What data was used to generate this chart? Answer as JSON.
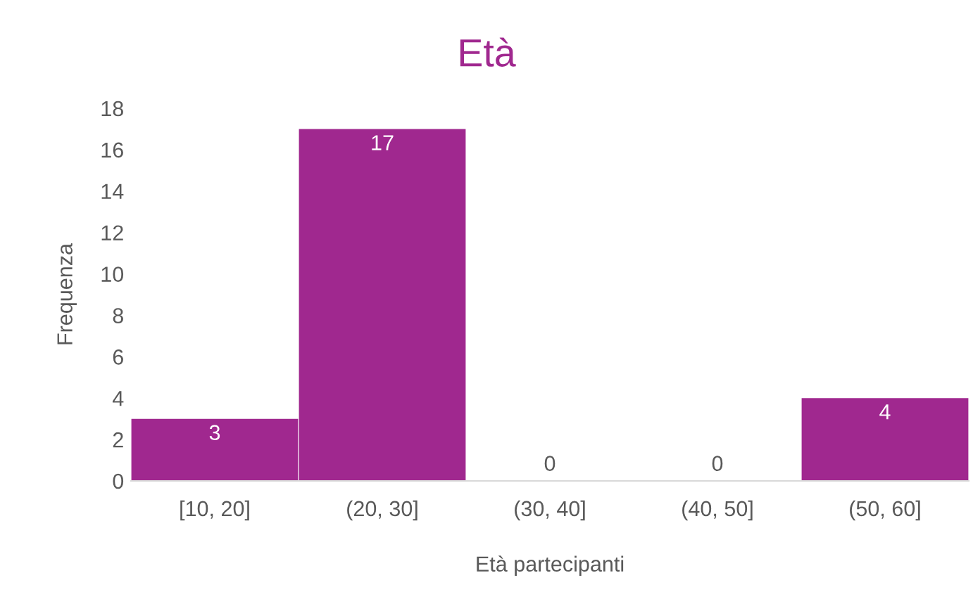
{
  "chart_data": {
    "type": "bar",
    "title": "Età",
    "xlabel": "Età partecipanti",
    "ylabel": "Frequenza",
    "categories": [
      "[10, 20]",
      "(20, 30]",
      "(30, 40]",
      "(40, 50]",
      "(50, 60]"
    ],
    "values": [
      3,
      17,
      0,
      0,
      4
    ],
    "color": "#a0288f",
    "ylim": [
      0,
      18
    ],
    "yticks": [
      0,
      2,
      4,
      6,
      8,
      10,
      12,
      14,
      16,
      18
    ],
    "grid": false,
    "data_labels": true
  }
}
